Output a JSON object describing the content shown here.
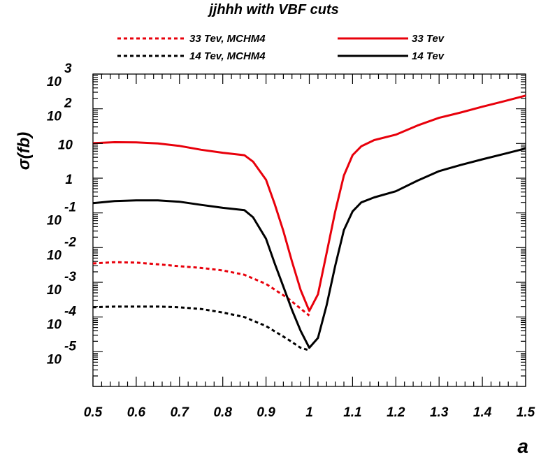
{
  "chart_data": {
    "type": "line",
    "title": "jjhhh with VBF cuts",
    "xlabel": "a",
    "ylabel": "σ(fb)",
    "xlim": [
      0.5,
      1.5
    ],
    "ylim_log10": [
      -6,
      3
    ],
    "yscale": "log",
    "grid": false,
    "legend_position": "top",
    "x_tick_labels": [
      "0.5",
      "0.6",
      "0.7",
      "0.8",
      "0.9",
      "1",
      "1.1",
      "1.2",
      "1.3",
      "1.4",
      "1.5"
    ],
    "y_tick_labels": [
      {
        "base": "10",
        "exp": "3"
      },
      {
        "base": "10",
        "exp": "2"
      },
      {
        "base": "10",
        "exp": ""
      },
      {
        "base": "1",
        "exp": ""
      },
      {
        "base": "10",
        "exp": "-1"
      },
      {
        "base": "10",
        "exp": "-2"
      },
      {
        "base": "10",
        "exp": "-3"
      },
      {
        "base": "10",
        "exp": "-4"
      },
      {
        "base": "10",
        "exp": "-5"
      }
    ],
    "series": [
      {
        "name": "33 Tev, MCHM4",
        "color": "#e8000b",
        "dash": "dashed",
        "x": [
          0.5,
          0.55,
          0.6,
          0.65,
          0.7,
          0.75,
          0.8,
          0.85,
          0.9,
          0.95,
          1.0
        ],
        "y": [
          0.0035,
          0.0038,
          0.0037,
          0.0033,
          0.0029,
          0.0026,
          0.0022,
          0.00165,
          0.0009,
          0.00035,
          0.00011
        ]
      },
      {
        "name": "33 Tev",
        "color": "#e8000b",
        "dash": "solid",
        "x": [
          0.5,
          0.55,
          0.6,
          0.65,
          0.7,
          0.75,
          0.8,
          0.85,
          0.87,
          0.9,
          0.92,
          0.94,
          0.96,
          0.98,
          1.0,
          1.02,
          1.04,
          1.06,
          1.08,
          1.1,
          1.12,
          1.15,
          1.2,
          1.25,
          1.3,
          1.35,
          1.4,
          1.45,
          1.5
        ],
        "y": [
          10.2,
          10.9,
          10.8,
          10.0,
          8.5,
          6.6,
          5.4,
          4.6,
          3.0,
          0.9,
          0.18,
          0.03,
          0.004,
          0.0006,
          0.00015,
          0.00045,
          0.007,
          0.11,
          1.2,
          4.6,
          8.3,
          12.5,
          18,
          33,
          55,
          78,
          115,
          165,
          240
        ]
      },
      {
        "name": "14 Tev, MCHM4",
        "color": "#000000",
        "dash": "dashed",
        "x": [
          0.5,
          0.55,
          0.6,
          0.65,
          0.7,
          0.75,
          0.8,
          0.85,
          0.9,
          0.95,
          0.98,
          1.0
        ],
        "y": [
          0.00019,
          0.0002,
          0.0002,
          0.0002,
          0.00019,
          0.00017,
          0.000135,
          0.0001,
          5.5e-05,
          2.3e-05,
          1.3e-05,
          1.1e-05
        ]
      },
      {
        "name": "14 Tev",
        "color": "#000000",
        "dash": "solid",
        "x": [
          0.5,
          0.55,
          0.6,
          0.65,
          0.7,
          0.75,
          0.8,
          0.85,
          0.87,
          0.9,
          0.92,
          0.94,
          0.96,
          0.98,
          1.0,
          1.02,
          1.04,
          1.06,
          1.08,
          1.1,
          1.12,
          1.15,
          1.2,
          1.25,
          1.3,
          1.35,
          1.4,
          1.45,
          1.5
        ],
        "y": [
          0.19,
          0.22,
          0.23,
          0.23,
          0.21,
          0.17,
          0.14,
          0.12,
          0.075,
          0.018,
          0.0035,
          0.00075,
          0.00016,
          4e-05,
          1.3e-05,
          2.5e-05,
          0.00022,
          0.003,
          0.032,
          0.11,
          0.2,
          0.28,
          0.42,
          0.85,
          1.6,
          2.4,
          3.5,
          5.0,
          7.2
        ]
      }
    ]
  }
}
